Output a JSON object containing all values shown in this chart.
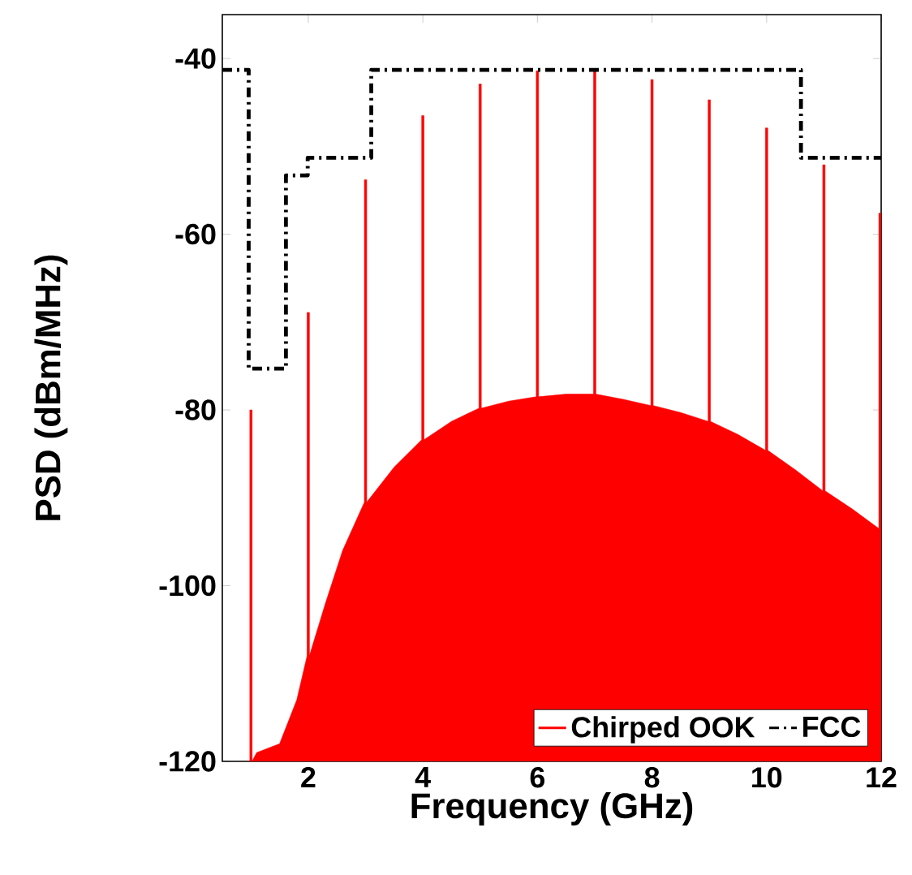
{
  "chart_data": {
    "type": "line",
    "xlabel": "Frequency (GHz)",
    "ylabel": "PSD (dBm/MHz)",
    "xlim": [
      0.5,
      12
    ],
    "ylim": [
      -120,
      -35
    ],
    "xticks": [
      2,
      4,
      6,
      8,
      10,
      12
    ],
    "yticks": [
      -120,
      -100,
      -80,
      -60,
      -40
    ],
    "grid": false,
    "legend": "bottom right",
    "series": [
      {
        "name": "Chirped OOK",
        "type": "area",
        "color": "#ff0000",
        "line_style": "solid",
        "x": [
          0.9,
          0.98,
          0.98,
          1.02,
          1.02,
          1.1,
          1.5,
          1.8,
          1.98,
          1.98,
          2.02,
          2.02,
          2.3,
          2.6,
          2.98,
          2.98,
          3.02,
          3.02,
          3.5,
          3.98,
          3.98,
          4.02,
          4.02,
          4.5,
          4.98,
          4.98,
          5.02,
          5.02,
          5.5,
          5.98,
          5.98,
          6.02,
          6.02,
          6.5,
          6.98,
          6.98,
          7.02,
          7.02,
          7.5,
          7.98,
          7.98,
          8.02,
          8.02,
          8.5,
          8.98,
          8.98,
          9.02,
          9.02,
          9.5,
          9.98,
          9.98,
          10.02,
          10.02,
          10.5,
          10.98,
          10.98,
          11.02,
          11.02,
          11.5,
          11.96,
          11.96,
          12,
          12
        ],
        "values": [
          -120,
          -120,
          -80,
          -80,
          -120,
          -119,
          -118,
          -113,
          -108,
          -68.9,
          -68.9,
          -108,
          -102,
          -96,
          -90.5,
          -53.8,
          -53.8,
          -90.5,
          -86.5,
          -83.4,
          -46.5,
          -46.5,
          -83.4,
          -81.3,
          -79.8,
          -42.9,
          -42.9,
          -79.8,
          -79,
          -78.5,
          -41.4,
          -41.4,
          -78.5,
          -78.2,
          -78.2,
          -41.3,
          -41.3,
          -78.2,
          -78.8,
          -79.5,
          -42.4,
          -42.4,
          -79.5,
          -80.3,
          -81.3,
          -44.7,
          -44.7,
          -81.3,
          -82.8,
          -84.6,
          -47.9,
          -47.9,
          -84.6,
          -86.8,
          -89.2,
          -52.1,
          -52.1,
          -89.2,
          -91.3,
          -93.5,
          -57.6,
          -57.6,
          -120
        ]
      },
      {
        "name": "FCC",
        "color": "#000000",
        "line_style": "dashdot",
        "x": [
          0.5,
          0.96,
          0.96,
          1.61,
          1.61,
          1.99,
          1.99,
          3.1,
          3.1,
          10.6,
          10.6,
          12
        ],
        "values": [
          -41.3,
          -41.3,
          -75.3,
          -75.3,
          -53.3,
          -53.3,
          -51.3,
          -51.3,
          -41.3,
          -41.3,
          -51.3,
          -51.3
        ]
      }
    ]
  }
}
